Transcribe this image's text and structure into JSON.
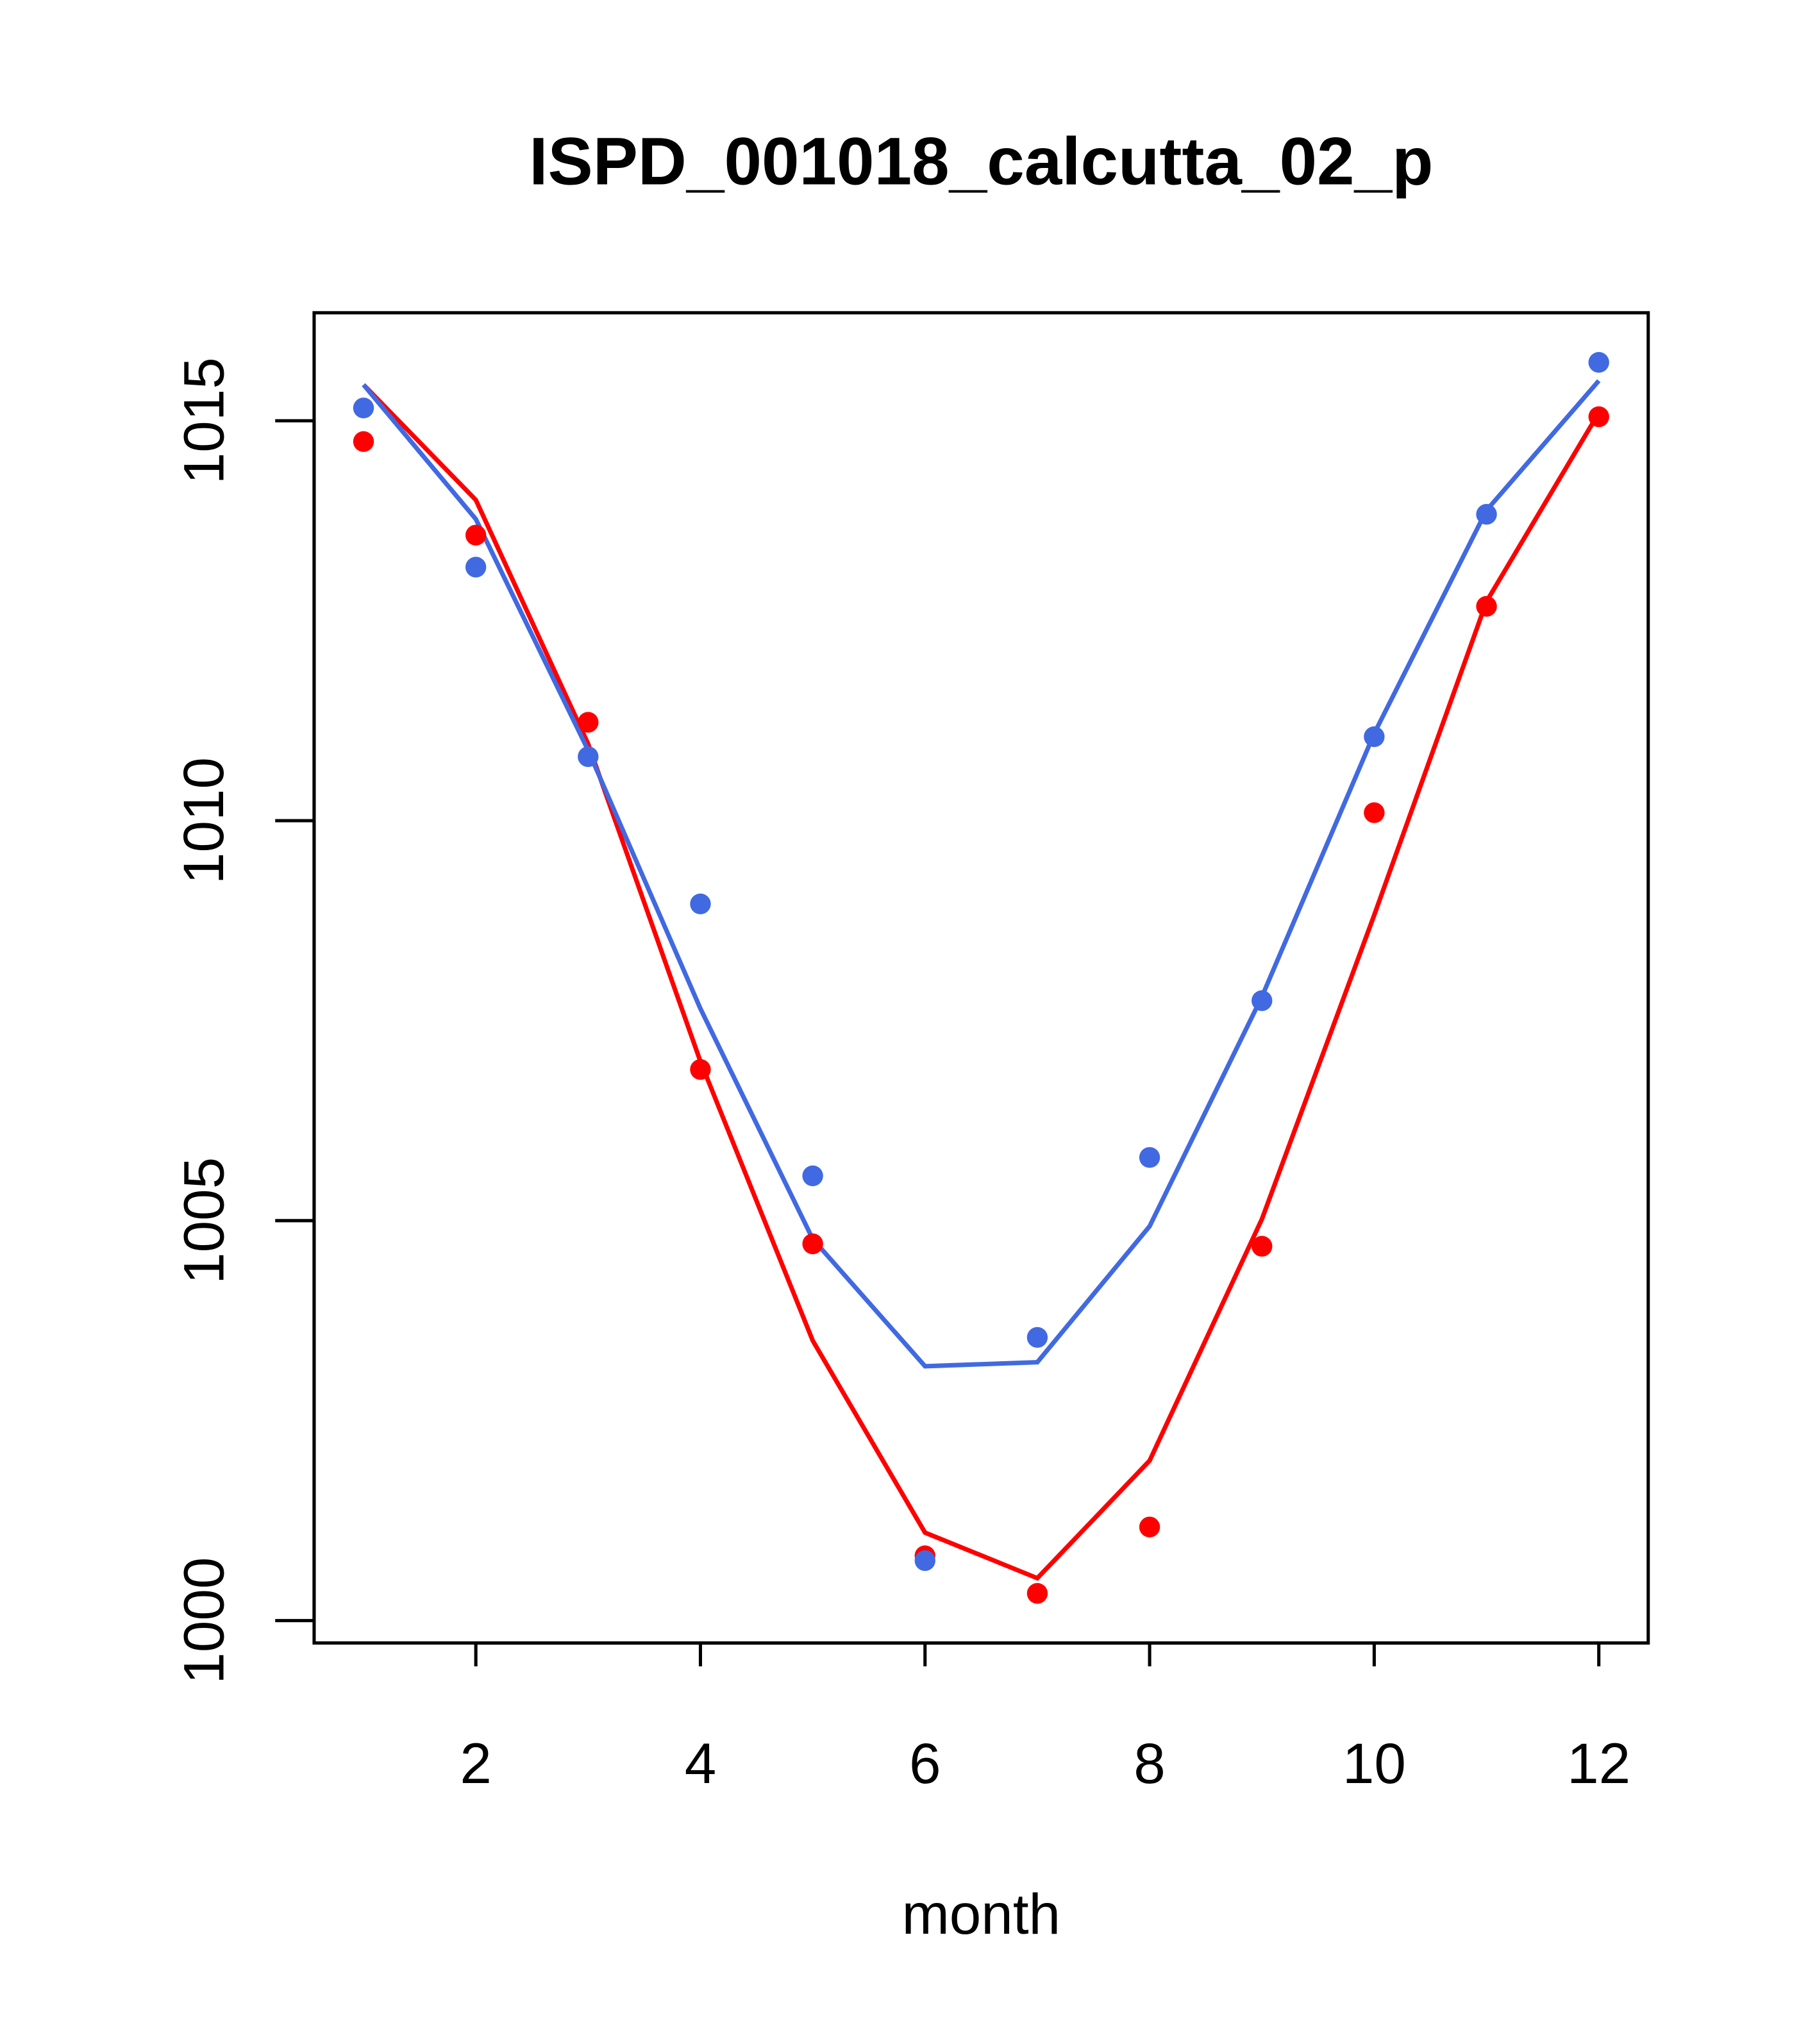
{
  "chart_data": {
    "type": "line",
    "title": "ISPD_001018_calcutta_02_p",
    "xlabel": "month",
    "ylabel": "",
    "xlim": [
      0.56,
      12.44
    ],
    "ylim": [
      999.72,
      1016.35
    ],
    "x_ticks": [
      2,
      4,
      6,
      8,
      10,
      12
    ],
    "x_tick_labels": [
      "2",
      "4",
      "6",
      "8",
      "10",
      "12"
    ],
    "y_ticks": [
      1000,
      1005,
      1010,
      1015
    ],
    "y_tick_labels": [
      "1000",
      "1005",
      "1010",
      "1015"
    ],
    "grid": false,
    "x": [
      1,
      2,
      3,
      4,
      5,
      6,
      7,
      8,
      9,
      10,
      11,
      12
    ],
    "series": [
      {
        "name": "red-points",
        "color": "#ff0000",
        "kind": "points",
        "values": [
          1014.74,
          1013.57,
          1011.23,
          1006.89,
          1004.71,
          1000.81,
          1000.34,
          1001.17,
          1004.68,
          1010.1,
          1012.68,
          1015.05
        ]
      },
      {
        "name": "blue-points",
        "color": "#4169e1",
        "kind": "points",
        "values": [
          1015.16,
          1013.17,
          1010.8,
          1008.96,
          1005.56,
          1000.75,
          1003.54,
          1005.79,
          1007.75,
          1011.05,
          1013.83,
          1015.73
        ]
      },
      {
        "name": "red-line",
        "color": "#ff0000",
        "kind": "line",
        "values": [
          1015.45,
          1014.01,
          1010.96,
          1006.99,
          1003.5,
          1001.1,
          1000.53,
          1002.0,
          1005.02,
          1008.82,
          1012.74,
          1015.1
        ]
      },
      {
        "name": "blue-line",
        "color": "#4169e1",
        "kind": "line",
        "values": [
          1015.45,
          1013.77,
          1010.88,
          1007.65,
          1004.77,
          1003.18,
          1003.23,
          1004.93,
          1007.8,
          1011.09,
          1013.88,
          1015.5
        ]
      }
    ]
  }
}
